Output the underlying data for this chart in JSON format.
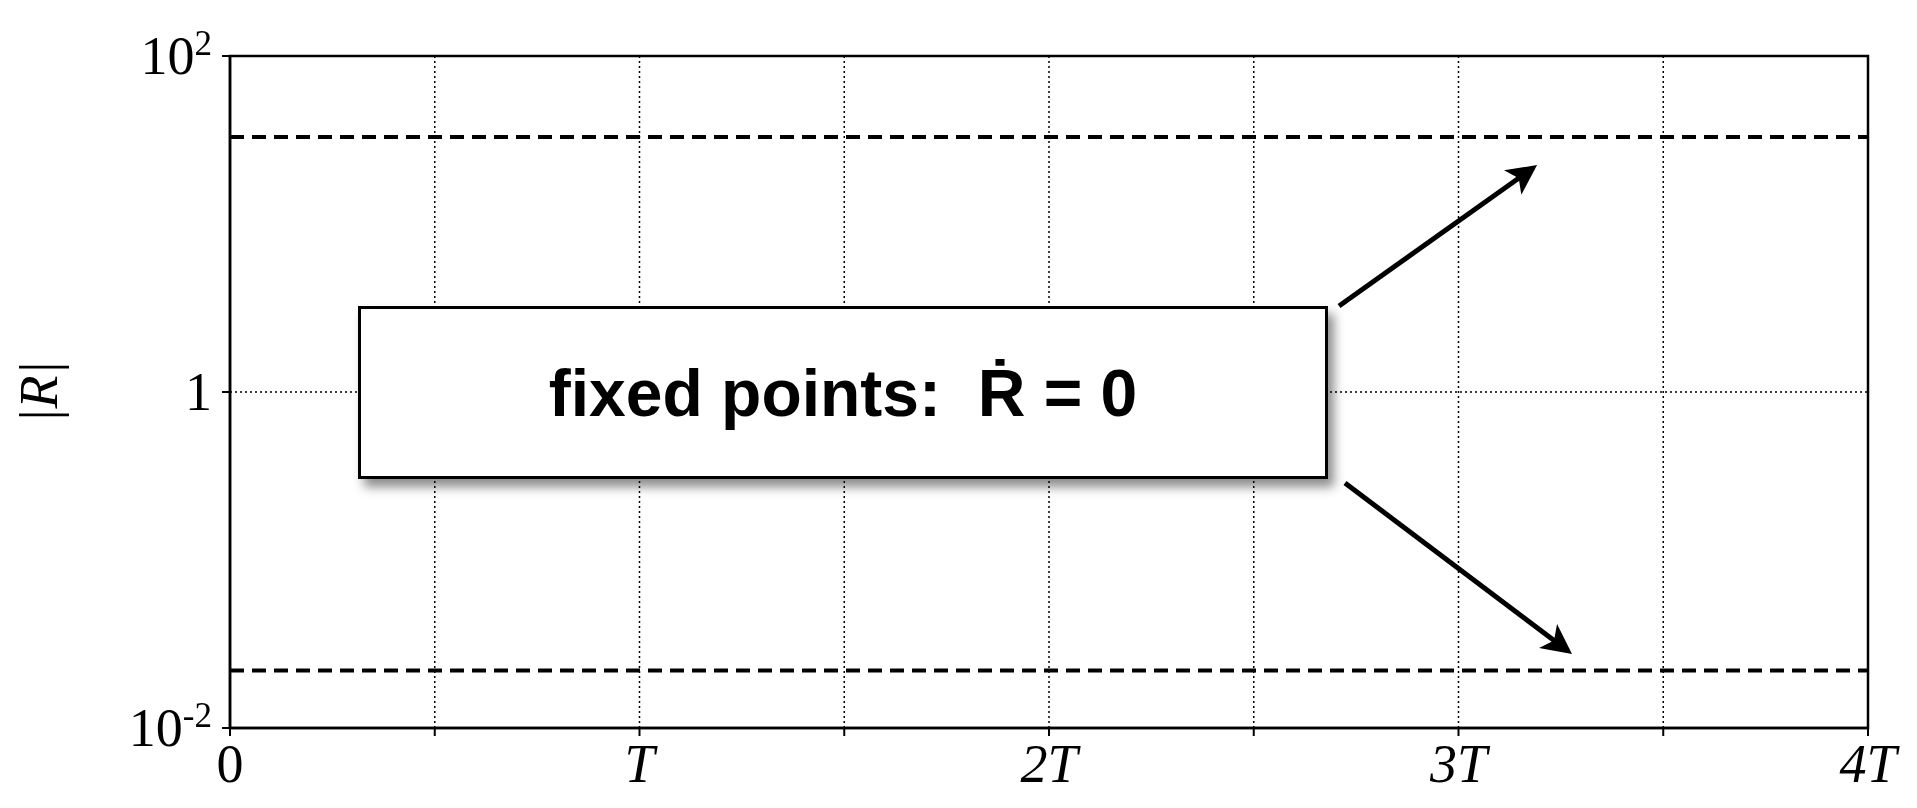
{
  "chart_data": {
    "type": "line",
    "ylabel": "|R|",
    "xlim": [
      0,
      4
    ],
    "xticks": [
      0,
      {
        "value": 0.5,
        "label": null
      },
      {
        "value": 1,
        "label": "T"
      },
      {
        "value": 1.5,
        "label": null
      },
      {
        "value": 2,
        "label": "2T"
      },
      {
        "value": 2.5,
        "label": null
      },
      {
        "value": 3,
        "label": "3T"
      },
      {
        "value": 3.5,
        "label": null
      },
      {
        "value": 4,
        "label": "4T"
      }
    ],
    "ylim": [
      0.01,
      100
    ],
    "yticks": [
      {
        "value": 0.01,
        "label": "10$^{-2}$"
      },
      1,
      {
        "value": 100,
        "label": "10$^{2}$"
      }
    ],
    "log": "y",
    "grid": true,
    "ref_lines": [
      {
        "axis": "y",
        "value": 33,
        "color": "#000000",
        "line_style": "dashed"
      },
      {
        "axis": "y",
        "value": 0.022,
        "color": "#000000",
        "line_style": "dashed"
      }
    ],
    "annotations": [
      "fixed points:  Ṙ = 0"
    ]
  }
}
